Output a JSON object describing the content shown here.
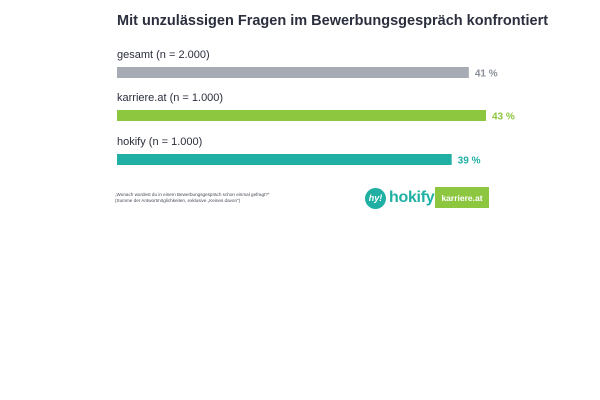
{
  "chart_data": {
    "type": "bar",
    "orientation": "horizontal",
    "title": "Mit unzulässigen Fragen im Bewerbungsgespräch konfrontiert",
    "categories": [
      "gesamt (n = 2.000)",
      "karriere.at (n = 1.000)",
      "hokify (n = 1.000)"
    ],
    "values": [
      41,
      43,
      39
    ],
    "value_labels": [
      "41 %",
      "43 %",
      "39 %"
    ],
    "colors": [
      "#a7abb4",
      "#8dc63f",
      "#1fb0a3"
    ],
    "unit": "%",
    "xlim": [
      0,
      43
    ],
    "grid": false,
    "legend": "none"
  },
  "footnote": {
    "line1": "„Wonach wurdest du in einem Bewerbungsgespräch schon einmal gefragt?“",
    "line2": "(Summe der Antwortmöglichkeiten, exklusive „Keines davon“)"
  },
  "logos": {
    "hokify_badge": "hy!",
    "hokify_text": "hokify",
    "karriere_text": "karriere.at"
  }
}
